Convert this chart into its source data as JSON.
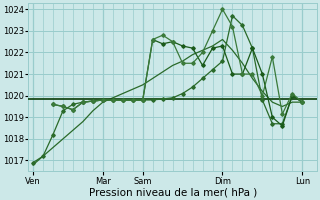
{
  "xlabel": "Pression niveau de la mer( hPa )",
  "ylim": [
    1016.5,
    1024.3
  ],
  "yticks": [
    1017,
    1018,
    1019,
    1020,
    1021,
    1022,
    1023,
    1024
  ],
  "bg_color": "#cce8e8",
  "grid_color": "#99cccc",
  "line_color_dark": "#1a4a1a",
  "tick_label_fontsize": 6,
  "xlabel_fontsize": 7.5,
  "day_labels": [
    "Ven",
    "Mar",
    "Sam",
    "Dim",
    "Lun"
  ],
  "day_positions": [
    0,
    7,
    11,
    19,
    27
  ],
  "vline_positions": [
    0,
    7,
    11,
    19,
    27
  ],
  "xlim": [
    -0.5,
    28.5
  ],
  "hline_y": 1019.85,
  "line1_x": [
    0,
    0.5,
    1,
    2,
    3,
    4,
    5,
    6,
    7,
    8,
    9,
    10,
    11,
    12,
    13,
    14,
    15,
    16,
    17,
    18,
    19,
    20,
    21,
    22,
    23,
    24,
    25,
    26,
    27
  ],
  "line1_y": [
    1016.8,
    1017.0,
    1017.2,
    1017.6,
    1018.0,
    1018.4,
    1018.8,
    1019.3,
    1019.7,
    1019.9,
    1020.1,
    1020.3,
    1020.5,
    1020.8,
    1021.1,
    1021.4,
    1021.6,
    1021.9,
    1022.1,
    1022.3,
    1022.6,
    1022.1,
    1021.5,
    1020.8,
    1020.2,
    1019.7,
    1019.5,
    1019.7,
    1019.7
  ],
  "line2_x": [
    0,
    1,
    2,
    3,
    4,
    5,
    6,
    7,
    8,
    9,
    10,
    11,
    12,
    13,
    14,
    15,
    16,
    17,
    18,
    19,
    20,
    21,
    22,
    23,
    24,
    25,
    26,
    27
  ],
  "line2_y": [
    1016.9,
    1017.2,
    1018.2,
    1019.3,
    1019.6,
    1019.7,
    1019.75,
    1019.8,
    1019.8,
    1019.8,
    1019.8,
    1019.8,
    1019.8,
    1019.85,
    1019.9,
    1020.1,
    1020.4,
    1020.8,
    1021.2,
    1021.6,
    1023.7,
    1023.25,
    1022.2,
    1019.8,
    1018.7,
    1018.7,
    1020.0,
    1019.7
  ],
  "line3_x": [
    2,
    3,
    4,
    5,
    6,
    7,
    8,
    9,
    10,
    11,
    12,
    13,
    14,
    15,
    16,
    17,
    18,
    19,
    20,
    21,
    22,
    23,
    24,
    25,
    26,
    27
  ],
  "line3_y": [
    1019.6,
    1019.5,
    1019.35,
    1019.7,
    1019.75,
    1019.8,
    1019.8,
    1019.8,
    1019.8,
    1019.8,
    1022.6,
    1022.4,
    1022.5,
    1022.3,
    1022.2,
    1021.4,
    1022.2,
    1022.3,
    1021.0,
    1021.0,
    1022.2,
    1021.0,
    1019.0,
    1018.6,
    1020.0,
    1019.7
  ],
  "line4_x": [
    2,
    3,
    4,
    5,
    6,
    7,
    8,
    9,
    10,
    11,
    12,
    13,
    14,
    15,
    16,
    17,
    18,
    19,
    20,
    21,
    22,
    23,
    24,
    25,
    26,
    27
  ],
  "line4_y": [
    1019.6,
    1019.5,
    1019.35,
    1019.7,
    1019.75,
    1019.8,
    1019.8,
    1019.8,
    1019.8,
    1019.8,
    1022.6,
    1022.8,
    1022.5,
    1021.5,
    1021.5,
    1022.0,
    1023.0,
    1024.0,
    1023.2,
    1021.0,
    1021.0,
    1020.0,
    1021.8,
    1019.15,
    1020.1,
    1019.7
  ]
}
